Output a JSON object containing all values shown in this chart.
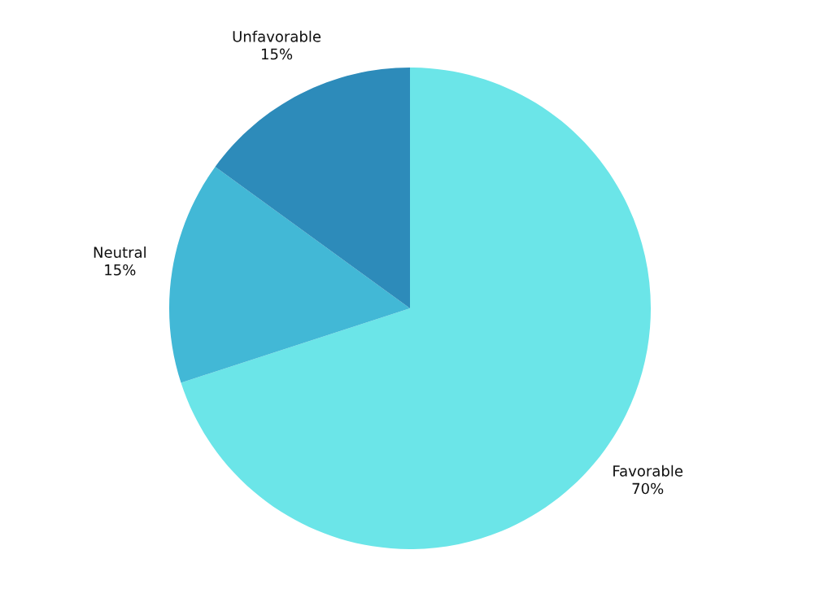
{
  "chart_data": {
    "type": "pie",
    "categories": [
      "Favorable",
      "Neutral",
      "Unfavorable"
    ],
    "values": [
      70,
      15,
      15
    ],
    "colors": [
      "#6be5e8",
      "#42b8d6",
      "#2d8bba"
    ],
    "value_labels": [
      "70%",
      "15%",
      "15%"
    ]
  }
}
